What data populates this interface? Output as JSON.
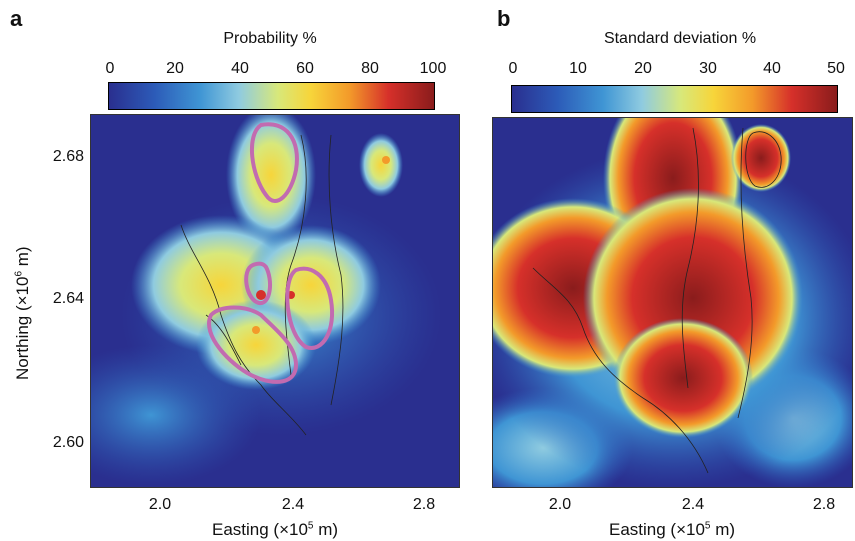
{
  "panels": [
    {
      "letter": "a",
      "colorbar": {
        "title": "Probability %",
        "ticks": [
          "0",
          "20",
          "40",
          "60",
          "80",
          "100"
        ],
        "min": 0,
        "max": 100
      },
      "x_ticks": [
        "2.0",
        "2.4",
        "2.8"
      ],
      "y_ticks": [
        "2.68",
        "2.64",
        "2.60"
      ],
      "xlabel_main": "Easting (×10",
      "xlabel_sup": "5",
      "xlabel_tail": " m)",
      "ylabel_main": "Northing (×10",
      "ylabel_sup": "6",
      "ylabel_tail": " m)"
    },
    {
      "letter": "b",
      "colorbar": {
        "title": "Standard deviation %",
        "ticks": [
          "0",
          "10",
          "20",
          "30",
          "40",
          "50"
        ],
        "min": 0,
        "max": 50
      },
      "x_ticks": [
        "2.0",
        "2.4",
        "2.8"
      ],
      "xlabel_main": "Easting (×10",
      "xlabel_sup": "5",
      "xlabel_tail": " m)"
    }
  ],
  "chart_data": [
    {
      "type": "heatmap",
      "title": "Probability %",
      "colorbar_range": [
        0,
        100
      ],
      "xlabel": "Easting (×10^5 m)",
      "ylabel": "Northing (×10^6 m)",
      "x_ticks": [
        2.0,
        2.4,
        2.8
      ],
      "y_ticks": [
        2.6,
        2.64,
        2.68
      ],
      "xlim": [
        1.82,
        2.9
      ],
      "ylim": [
        2.588,
        2.69
      ],
      "colormap": "jet",
      "highlight_outline_color": "#c26bb0"
    },
    {
      "type": "heatmap",
      "title": "Standard deviation %",
      "colorbar_range": [
        0,
        50
      ],
      "xlabel": "Easting (×10^5 m)",
      "x_ticks": [
        2.0,
        2.4,
        2.8
      ],
      "xlim": [
        1.82,
        2.9
      ],
      "ylim": [
        2.588,
        2.69
      ],
      "colormap": "jet"
    }
  ],
  "colors": {
    "jet": [
      "#2a2f8f",
      "#2c5bb8",
      "#3f95d4",
      "#8fcbe0",
      "#d8e87a",
      "#f7d53a",
      "#f39a2a",
      "#d6302a",
      "#8a1c1c"
    ],
    "outline": "#c26bb0"
  }
}
